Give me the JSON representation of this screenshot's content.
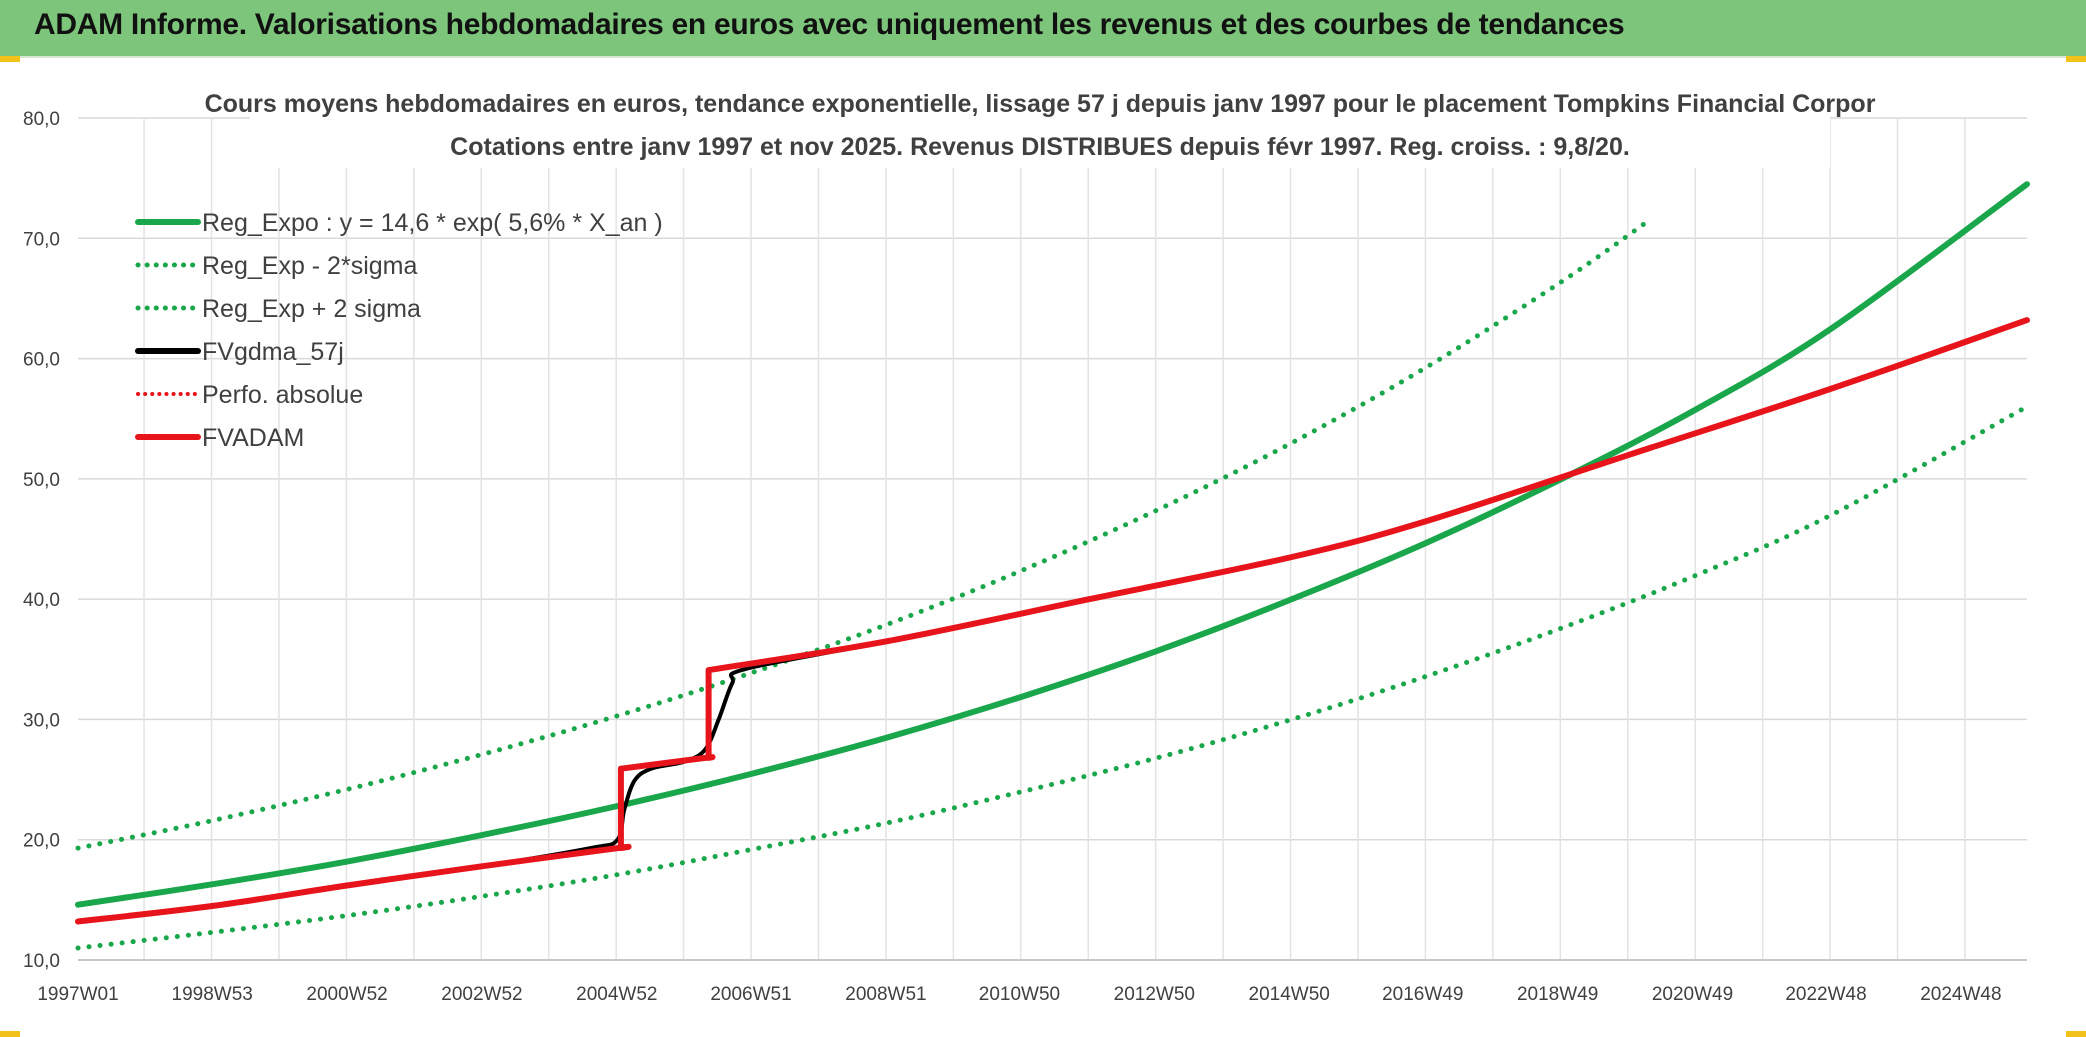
{
  "header": {
    "title": "ADAM Informe. Valorisations hebdomadaires en euros avec uniquement les revenus et des courbes de tendances"
  },
  "colors": {
    "banner": "#7cc57a",
    "green": "#1aa64a",
    "red": "#e8141b",
    "black": "#000000",
    "corner": "#f2c21b"
  },
  "chart_data": {
    "type": "line",
    "title": "Cours moyens hebdomadaires en euros, tendance exponentielle, lissage 57 j depuis janv 1997 pour le placement Tompkins Financial Corpor",
    "subtitle": "Cotations entre janv 1997 et nov 2025. Revenus DISTRIBUES depuis févr 1997. Reg. croiss. : 9,8/20.",
    "xlabel": "",
    "ylabel": "",
    "ylim": [
      10,
      80
    ],
    "xlim": [
      1997.0,
      2025.9
    ],
    "grid": true,
    "legend_position": "top-left",
    "y_ticks": [
      "10,0",
      "20,0",
      "30,0",
      "40,0",
      "50,0",
      "60,0",
      "70,0",
      "80,0"
    ],
    "x_ticks": [
      {
        "label": "1997W01",
        "x": 1997.0
      },
      {
        "label": "1998W53",
        "x": 1998.99
      },
      {
        "label": "2000W52",
        "x": 2000.99
      },
      {
        "label": "2002W52",
        "x": 2002.99
      },
      {
        "label": "2004W52",
        "x": 2004.99
      },
      {
        "label": "2006W51",
        "x": 2006.98
      },
      {
        "label": "2008W51",
        "x": 2008.98
      },
      {
        "label": "2010W50",
        "x": 2010.96
      },
      {
        "label": "2012W50",
        "x": 2012.96
      },
      {
        "label": "2014W50",
        "x": 2014.96
      },
      {
        "label": "2016W49",
        "x": 2016.94
      },
      {
        "label": "2018W49",
        "x": 2018.94
      },
      {
        "label": "2020W49",
        "x": 2020.94
      },
      {
        "label": "2022W48",
        "x": 2022.92
      },
      {
        "label": "2024W48",
        "x": 2024.92
      }
    ],
    "series": [
      {
        "name": "Reg_Expo : y = 14,6 * exp( 5,6% *  X_an )",
        "style": "solid",
        "color": "#1aa64a",
        "width": 6,
        "x": [
          1997.0,
          1999.0,
          2001.0,
          2003.0,
          2005.0,
          2007.0,
          2009.0,
          2011.0,
          2013.0,
          2015.0,
          2017.0,
          2019.0,
          2021.0,
          2023.0,
          2025.9
        ],
        "y": [
          14.6,
          16.3,
          18.2,
          20.4,
          22.8,
          25.5,
          28.5,
          31.9,
          35.7,
          40.0,
          44.7,
          50.0,
          55.8,
          62.5,
          74.5
        ]
      },
      {
        "name": "Reg_Exp - 2*sigma",
        "style": "dotted",
        "color": "#1aa64a",
        "width": 5,
        "x": [
          1997.0,
          1999.0,
          2001.0,
          2003.0,
          2005.0,
          2007.0,
          2009.0,
          2011.0,
          2013.0,
          2015.0,
          2017.0,
          2019.0,
          2021.0,
          2023.0,
          2025.9
        ],
        "y": [
          11.0,
          12.3,
          13.7,
          15.3,
          17.1,
          19.2,
          21.4,
          24.0,
          26.8,
          30.0,
          33.6,
          37.6,
          42.0,
          47.0,
          56.0
        ]
      },
      {
        "name": "Reg_Exp + 2 sigma",
        "style": "dotted",
        "color": "#1aa64a",
        "width": 5,
        "x": [
          1997.0,
          1999.0,
          2001.0,
          2003.0,
          2005.0,
          2007.0,
          2009.0,
          2011.0,
          2013.0,
          2015.0,
          2017.0,
          2019.0,
          2020.3
        ],
        "y": [
          19.3,
          21.6,
          24.2,
          27.1,
          30.3,
          33.9,
          37.9,
          42.4,
          47.4,
          53.0,
          59.3,
          66.4,
          71.5
        ]
      },
      {
        "name": "FVgdma_57j",
        "style": "solid",
        "color": "#000000",
        "width": 4,
        "x": [
          1997.0,
          1999.0,
          2001.0,
          2003.0,
          2004.6,
          2005.0,
          2005.1,
          2005.25,
          2005.5,
          2006.0,
          2006.3,
          2006.5,
          2006.7,
          2006.9,
          2009.0,
          2012.0,
          2015.0,
          2017.0,
          2020.0,
          2023.0,
          2025.9
        ],
        "y": [
          13.2,
          14.5,
          16.2,
          17.8,
          19.3,
          20.0,
          22.5,
          24.9,
          25.9,
          26.5,
          27.5,
          30.0,
          33.0,
          34.2,
          36.5,
          40.0,
          43.5,
          46.5,
          52.0,
          57.5,
          63.2
        ]
      },
      {
        "name": "Perfo. absolue",
        "style": "dotted",
        "color": "#e8141b",
        "width": 3,
        "x": [],
        "y": []
      },
      {
        "name": "FVADAM",
        "style": "solid",
        "color": "#e8141b",
        "width": 6,
        "x": [
          1997.0,
          1999.0,
          2001.0,
          2003.0,
          2005.0,
          2006.3,
          2009.0,
          2012.0,
          2015.0,
          2017.0,
          2020.0,
          2023.0,
          2025.9
        ],
        "y": [
          13.2,
          14.5,
          16.2,
          17.8,
          19.3,
          26.8,
          36.5,
          40.0,
          43.5,
          46.5,
          52.0,
          57.5,
          63.2
        ],
        "jumps": [
          {
            "x": 2005.05,
            "from": 19.3,
            "to": 25.9
          },
          {
            "x": 2006.35,
            "from": 26.8,
            "to": 34.1
          }
        ]
      }
    ]
  }
}
